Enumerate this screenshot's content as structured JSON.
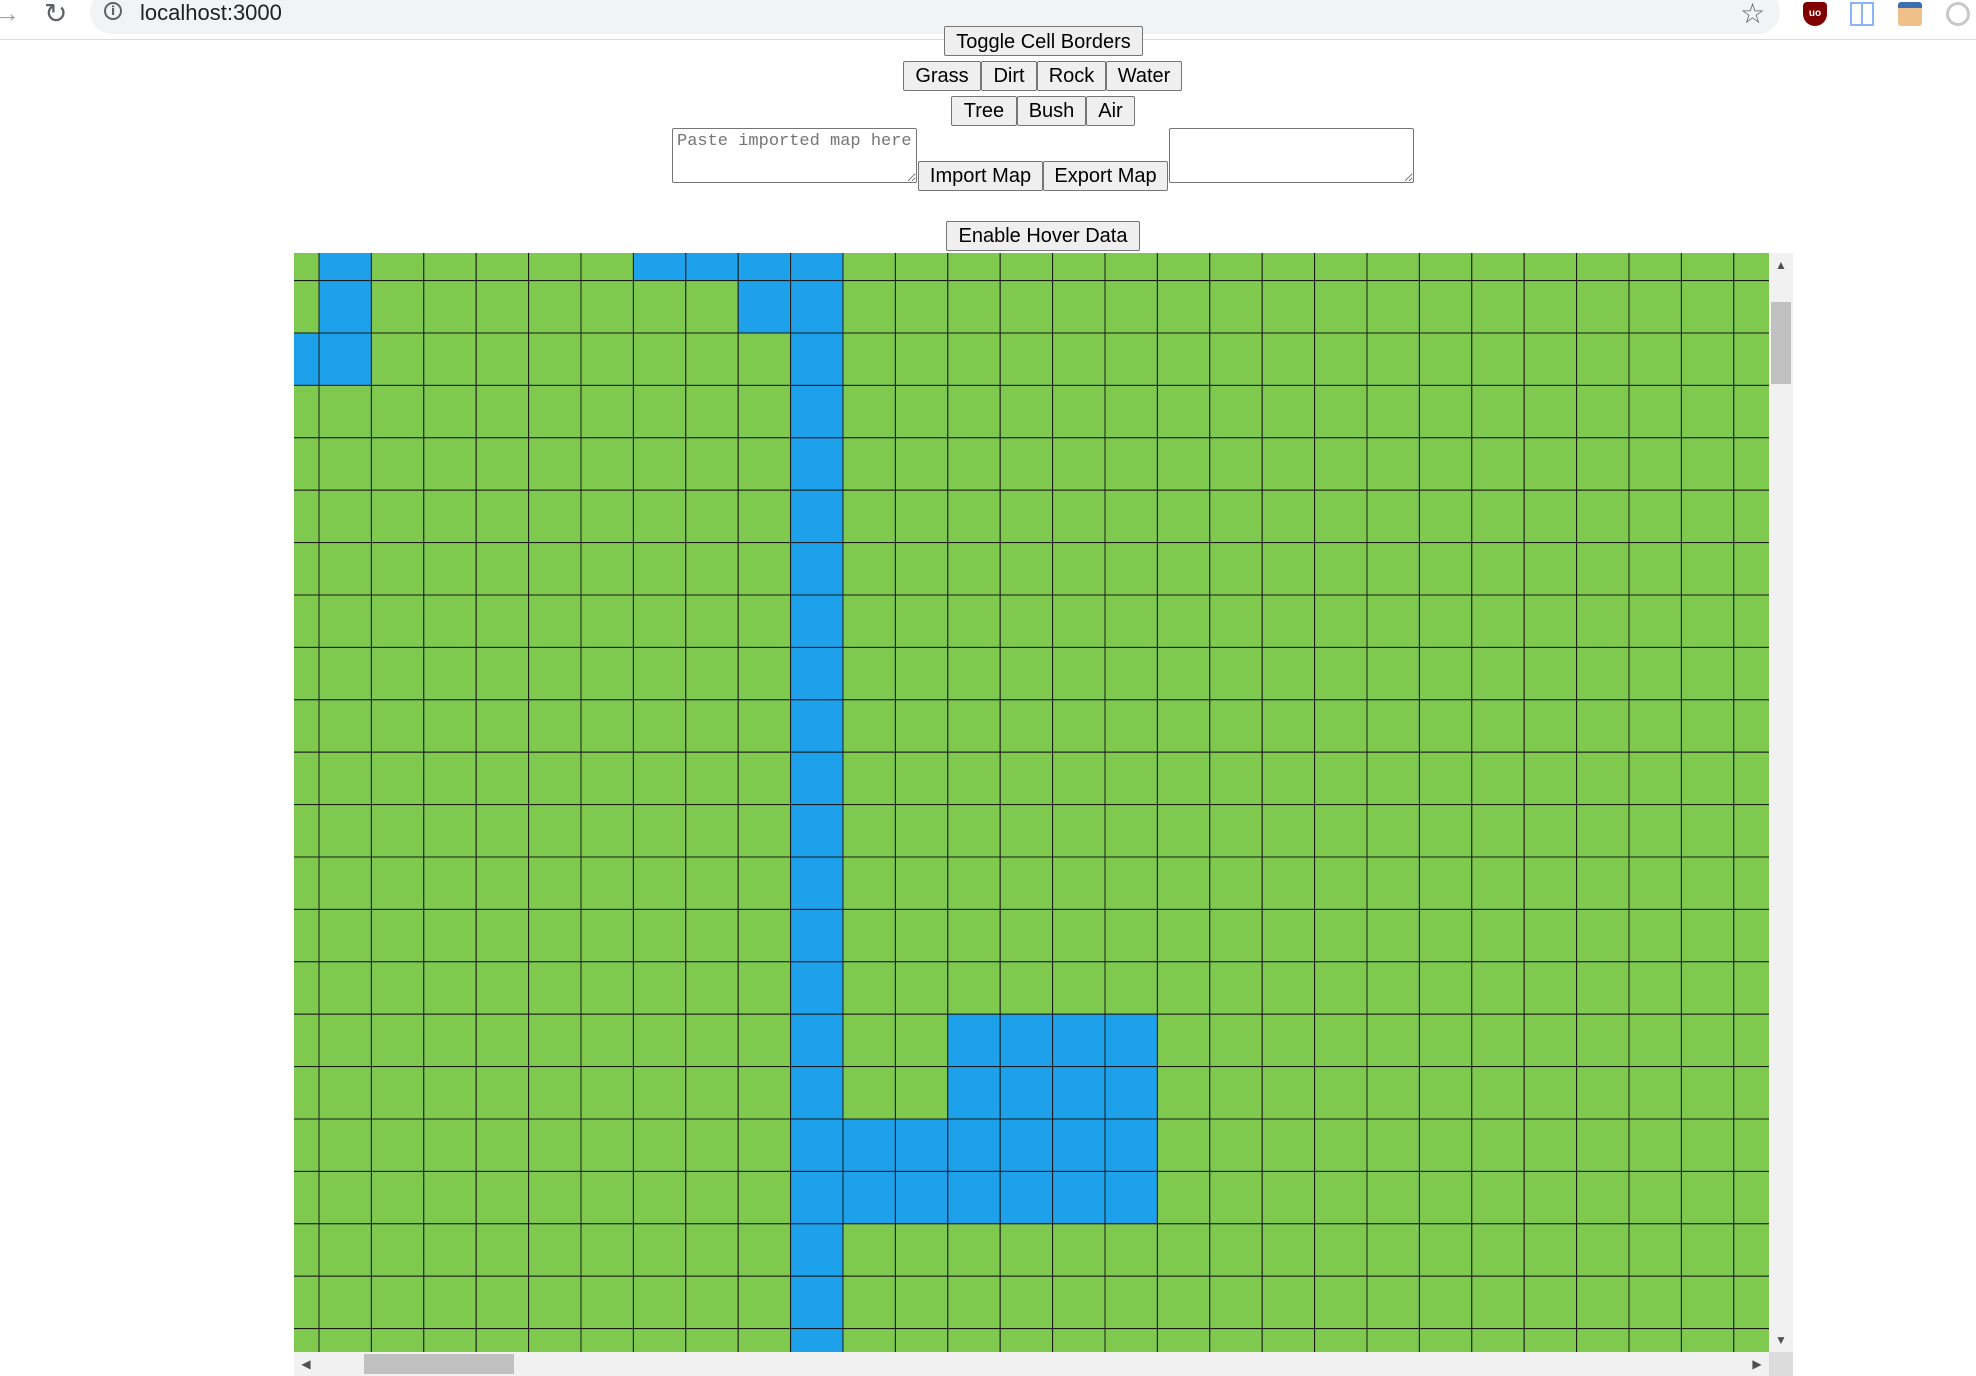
{
  "browser": {
    "url": "localhost:3000",
    "icons": [
      "back-arrow-icon",
      "reload-icon",
      "info-icon",
      "star-icon",
      "ublock-icon",
      "reader-icon",
      "extension-face-icon",
      "extension-circle-icon"
    ]
  },
  "controls": {
    "toggle_borders_label": "Toggle Cell Borders",
    "tiles": {
      "grass": "Grass",
      "dirt": "Dirt",
      "rock": "Rock",
      "water": "Water",
      "tree": "Tree",
      "bush": "Bush",
      "air": "Air"
    },
    "import_placeholder": "Paste imported map here",
    "export_value": "",
    "import_label": "Import Map",
    "export_label": "Export Map",
    "hover_label": "Enable Hover Data"
  },
  "map": {
    "colors": {
      "grass": "#7fc94f",
      "water": "#1da1ea",
      "border": "#1a1a1a"
    },
    "cols": 29,
    "visible_rows": 22,
    "water_cells": [
      [
        0,
        1
      ],
      [
        0,
        7
      ],
      [
        0,
        8
      ],
      [
        0,
        9
      ],
      [
        0,
        10
      ],
      [
        1,
        1
      ],
      [
        1,
        9
      ],
      [
        1,
        10
      ],
      [
        2,
        0
      ],
      [
        2,
        1
      ],
      [
        2,
        10
      ],
      [
        3,
        10
      ],
      [
        4,
        10
      ],
      [
        5,
        10
      ],
      [
        6,
        10
      ],
      [
        7,
        10
      ],
      [
        8,
        10
      ],
      [
        9,
        10
      ],
      [
        10,
        10
      ],
      [
        11,
        10
      ],
      [
        12,
        10
      ],
      [
        13,
        10
      ],
      [
        14,
        10
      ],
      [
        15,
        10
      ],
      [
        15,
        13
      ],
      [
        15,
        14
      ],
      [
        15,
        15
      ],
      [
        15,
        16
      ],
      [
        16,
        10
      ],
      [
        16,
        13
      ],
      [
        16,
        14
      ],
      [
        16,
        15
      ],
      [
        16,
        16
      ],
      [
        17,
        10
      ],
      [
        17,
        11
      ],
      [
        17,
        12
      ],
      [
        17,
        13
      ],
      [
        17,
        14
      ],
      [
        17,
        15
      ],
      [
        17,
        16
      ],
      [
        18,
        10
      ],
      [
        18,
        11
      ],
      [
        18,
        12
      ],
      [
        18,
        13
      ],
      [
        18,
        14
      ],
      [
        18,
        15
      ],
      [
        18,
        16
      ],
      [
        19,
        10
      ],
      [
        20,
        10
      ],
      [
        21,
        10
      ]
    ]
  }
}
